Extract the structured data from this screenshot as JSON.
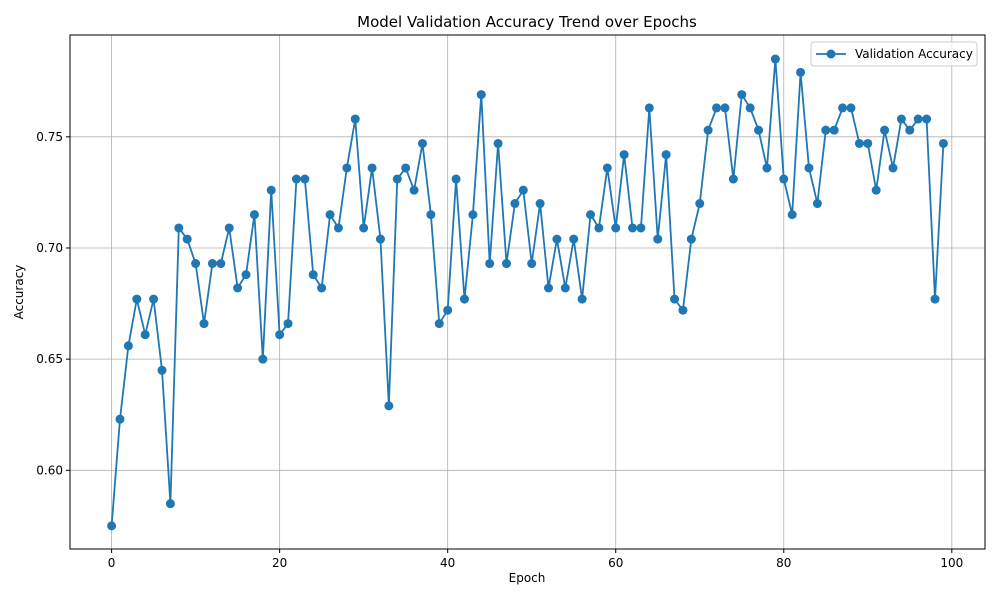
{
  "chart_data": {
    "type": "line",
    "title": "Model Validation Accuracy Trend over Epochs",
    "xlabel": "Epoch",
    "ylabel": "Accuracy",
    "xlim": [
      -4.95,
      103.95
    ],
    "ylim": [
      0.5646,
      0.7958
    ],
    "xticks": [
      0,
      20,
      40,
      60,
      80,
      100
    ],
    "xtick_labels": [
      "0",
      "20",
      "40",
      "60",
      "80",
      "100"
    ],
    "yticks": [
      0.6,
      0.65,
      0.7,
      0.75
    ],
    "ytick_labels": [
      "0.60",
      "0.65",
      "0.70",
      "0.75"
    ],
    "grid": true,
    "legend_position": "top-right",
    "color": "#1f77b4",
    "series": [
      {
        "name": "Validation Accuracy",
        "x": [
          0,
          1,
          2,
          3,
          4,
          5,
          6,
          7,
          8,
          9,
          10,
          11,
          12,
          13,
          14,
          15,
          16,
          17,
          18,
          19,
          20,
          21,
          22,
          23,
          24,
          25,
          26,
          27,
          28,
          29,
          30,
          31,
          32,
          33,
          34,
          35,
          36,
          37,
          38,
          39,
          40,
          41,
          42,
          43,
          44,
          45,
          46,
          47,
          48,
          49,
          50,
          51,
          52,
          53,
          54,
          55,
          56,
          57,
          58,
          59,
          60,
          61,
          62,
          63,
          64,
          65,
          66,
          67,
          68,
          69,
          70,
          71,
          72,
          73,
          74,
          75,
          76,
          77,
          78,
          79,
          80,
          81,
          82,
          83,
          84,
          85,
          86,
          87,
          88,
          89,
          90,
          91,
          92,
          93,
          94,
          95,
          96,
          97,
          98,
          99
        ],
        "values": [
          0.575,
          0.623,
          0.656,
          0.677,
          0.661,
          0.677,
          0.645,
          0.585,
          0.709,
          0.704,
          0.693,
          0.666,
          0.693,
          0.693,
          0.709,
          0.682,
          0.688,
          0.715,
          0.65,
          0.726,
          0.661,
          0.666,
          0.731,
          0.731,
          0.688,
          0.682,
          0.715,
          0.709,
          0.736,
          0.758,
          0.709,
          0.736,
          0.704,
          0.629,
          0.731,
          0.736,
          0.726,
          0.747,
          0.715,
          0.666,
          0.672,
          0.731,
          0.677,
          0.715,
          0.769,
          0.693,
          0.747,
          0.693,
          0.72,
          0.726,
          0.693,
          0.72,
          0.682,
          0.704,
          0.682,
          0.704,
          0.677,
          0.715,
          0.709,
          0.736,
          0.709,
          0.742,
          0.709,
          0.709,
          0.763,
          0.704,
          0.742,
          0.677,
          0.672,
          0.704,
          0.72,
          0.753,
          0.763,
          0.763,
          0.731,
          0.769,
          0.763,
          0.753,
          0.736,
          0.785,
          0.731,
          0.715,
          0.779,
          0.736,
          0.72,
          0.753,
          0.753,
          0.763,
          0.763,
          0.747,
          0.747,
          0.726,
          0.753,
          0.736,
          0.758,
          0.753,
          0.758,
          0.758,
          0.677,
          0.747
        ]
      }
    ]
  }
}
